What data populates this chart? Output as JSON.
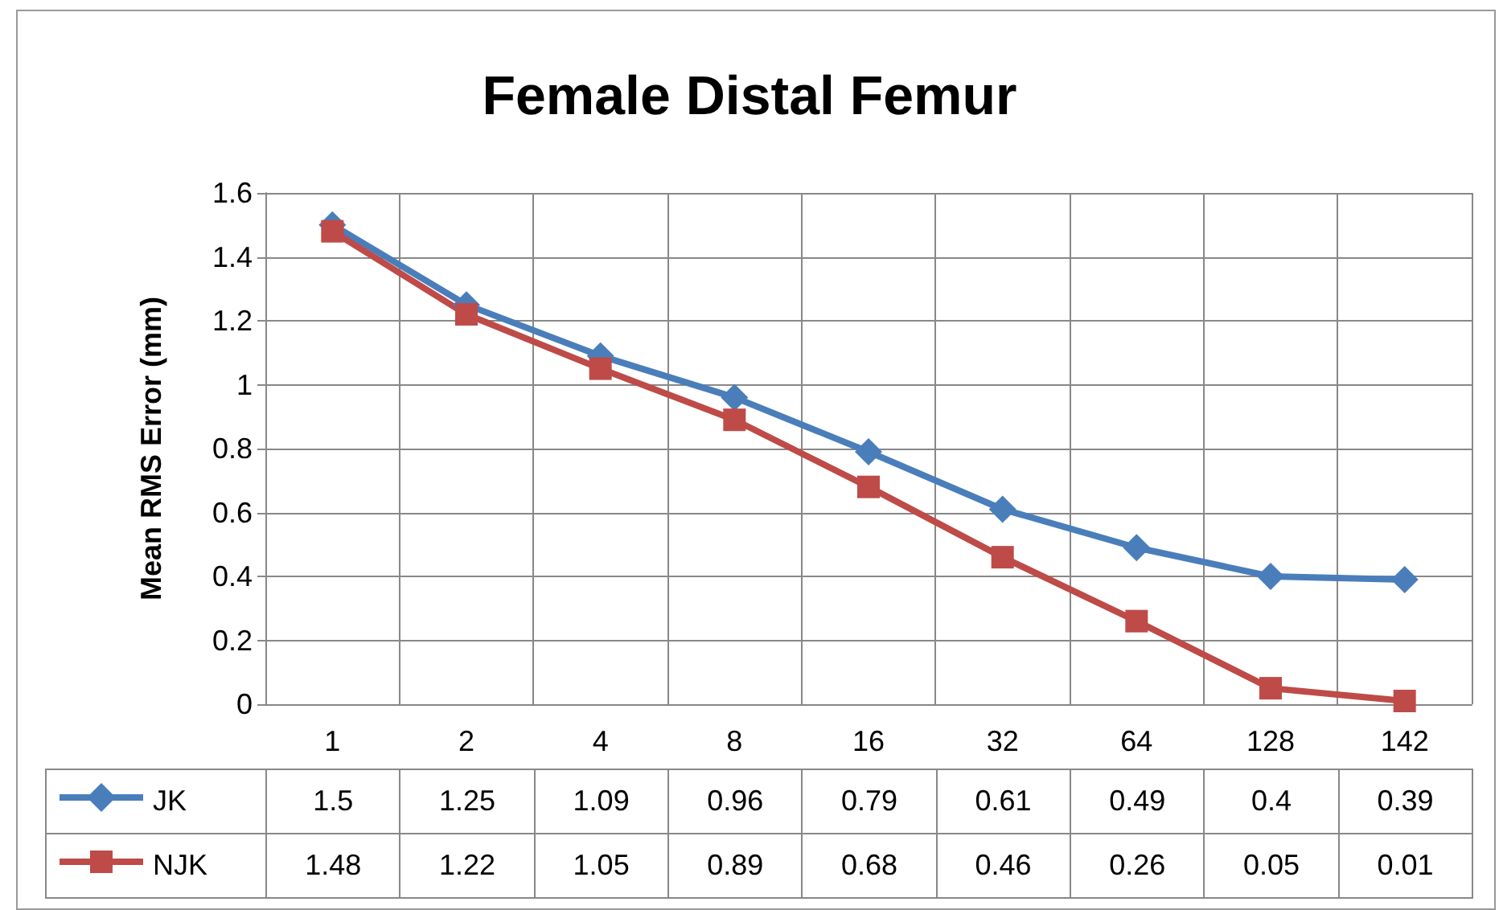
{
  "chart_data": {
    "type": "line",
    "title": "Female Distal Femur",
    "ylabel": "Mean RMS Error (mm)",
    "categories": [
      "1",
      "2",
      "4",
      "8",
      "16",
      "32",
      "64",
      "128",
      "142"
    ],
    "series": [
      {
        "name": "JK",
        "color": "#4a7ebb",
        "marker": "diamond",
        "values": [
          1.5,
          1.25,
          1.09,
          0.96,
          0.79,
          0.61,
          0.49,
          0.4,
          0.39
        ]
      },
      {
        "name": "NJK",
        "color": "#be4b48",
        "marker": "square",
        "values": [
          1.48,
          1.22,
          1.05,
          0.89,
          0.68,
          0.46,
          0.26,
          0.05,
          0.01
        ]
      }
    ],
    "ylim": [
      0,
      1.6
    ],
    "yticks": [
      0,
      0.2,
      0.4,
      0.6,
      0.8,
      1,
      1.2,
      1.4,
      1.6
    ],
    "grid": true,
    "legend": "bottom left",
    "data_labels": true,
    "line_style": "solid"
  }
}
